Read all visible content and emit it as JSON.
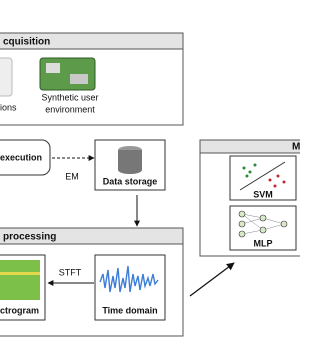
{
  "acquisition": {
    "title": "cquisition",
    "left_item": "ions",
    "synthetic_line1": "Synthetic user",
    "synthetic_line2": "environment",
    "execution": "execution",
    "edge_label": "EM",
    "storage": "Data storage"
  },
  "processing": {
    "title": "processing",
    "stft": "STFT",
    "time_domain": "Time domain",
    "spectrogram": "ctrogram"
  },
  "model": {
    "title": "Ma",
    "svm": "SVM",
    "mlp": "MLP"
  }
}
